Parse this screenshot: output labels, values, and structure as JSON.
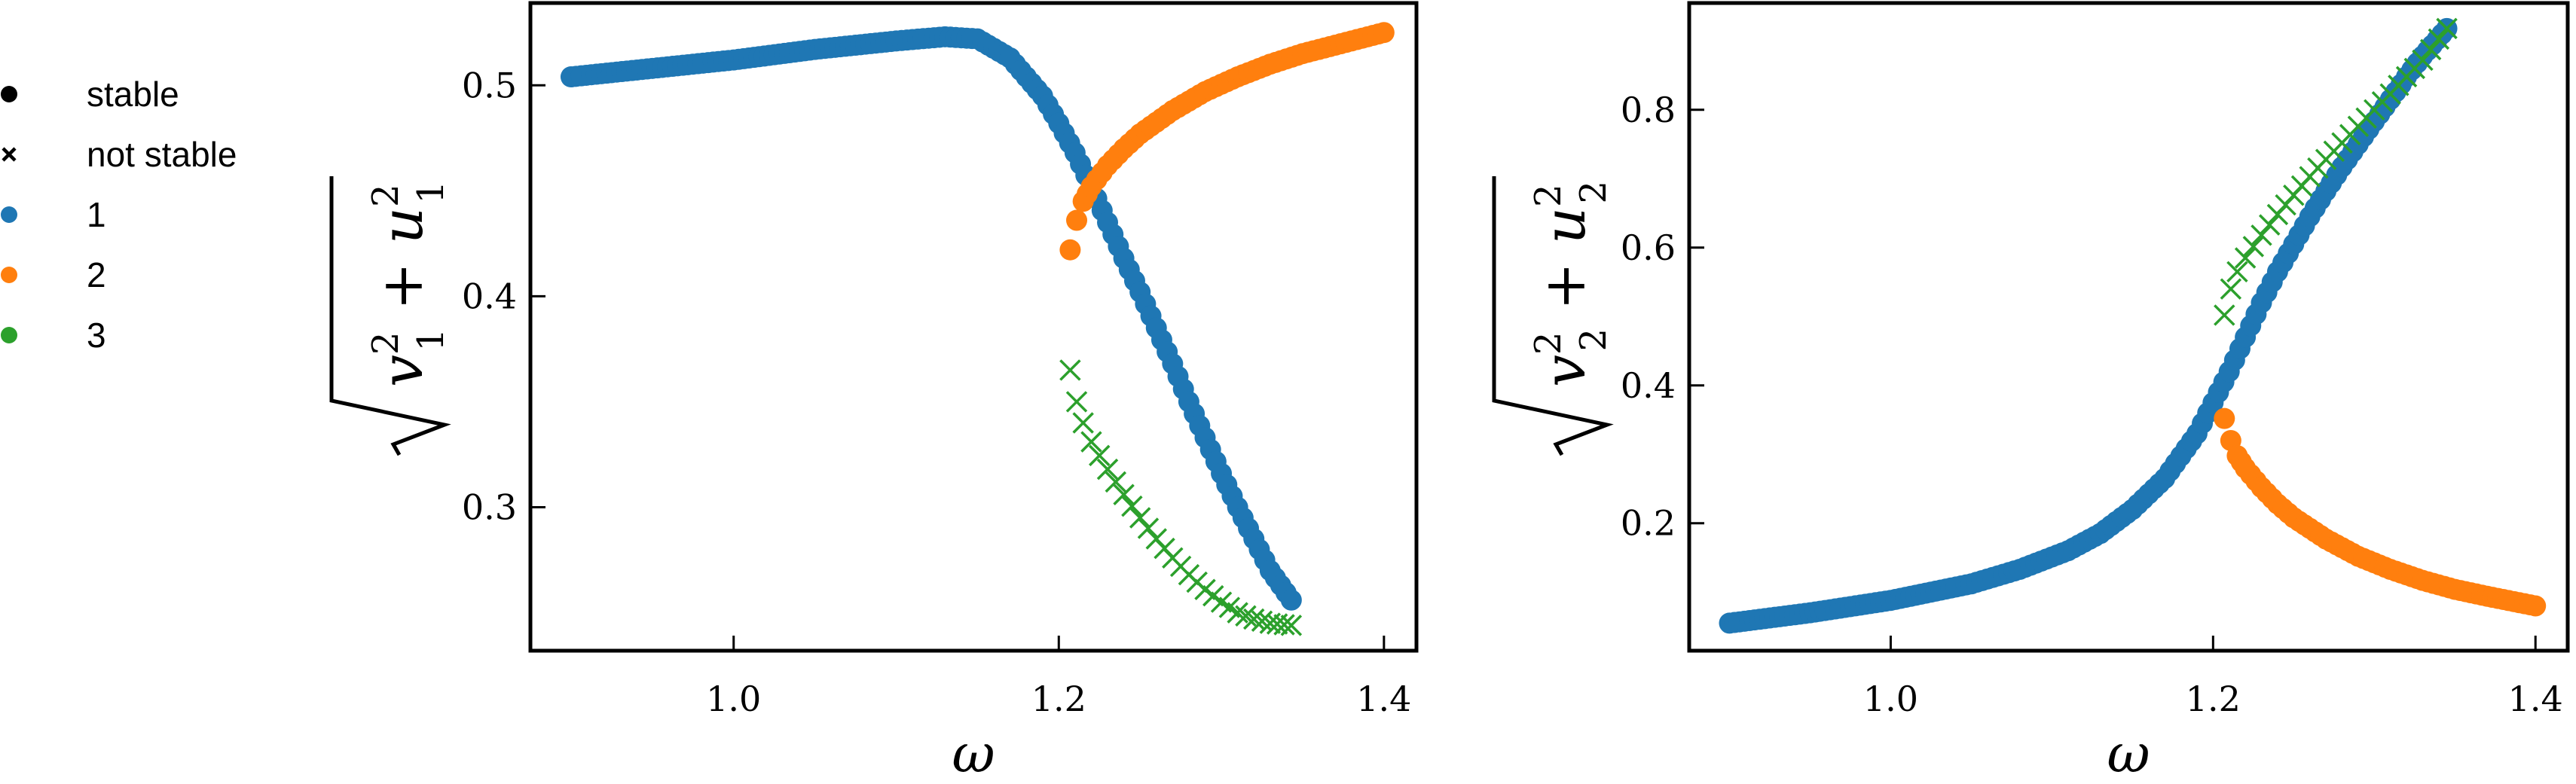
{
  "legend": {
    "items": [
      {
        "label": "stable",
        "marker": "circle",
        "color": "#000000"
      },
      {
        "label": "not stable",
        "marker": "x",
        "color": "#000000"
      },
      {
        "label": "1",
        "marker": "circle",
        "color": "#1f77b4"
      },
      {
        "label": "2",
        "marker": "circle",
        "color": "#ff7f0e"
      },
      {
        "label": "3",
        "marker": "circle",
        "color": "#2ca02c"
      }
    ]
  },
  "colors": {
    "branch1": "#1f77b4",
    "branch2": "#ff7f0e",
    "branch3": "#2ca02c",
    "axis": "#000000"
  },
  "chart_data": [
    {
      "type": "scatter",
      "title": "",
      "xlabel": "ω",
      "ylabel": "sqrt(v1^2 + u1^2)",
      "xlim": [
        0.875,
        1.42
      ],
      "ylim": [
        0.232,
        0.539
      ],
      "xticks": [
        1.0,
        1.2,
        1.4
      ],
      "xtick_labels": [
        "1.0",
        "1.2",
        "1.4"
      ],
      "yticks": [
        0.3,
        0.4,
        0.5
      ],
      "ytick_labels": [
        "0.3",
        "0.4",
        "0.5"
      ],
      "grid": false,
      "series": [
        {
          "name": "1",
          "stability": "stable",
          "marker": "circle",
          "color": "#1f77b4",
          "x": [
            0.9,
            0.95,
            1.0,
            1.05,
            1.1,
            1.13,
            1.15,
            1.17,
            1.19,
            1.2,
            1.21,
            1.22,
            1.23,
            1.24,
            1.25,
            1.26,
            1.27,
            1.28,
            1.29,
            1.3,
            1.31,
            1.32,
            1.33,
            1.343
          ],
          "y": [
            0.504,
            0.508,
            0.512,
            0.517,
            0.521,
            0.523,
            0.522,
            0.513,
            0.495,
            0.482,
            0.468,
            0.452,
            0.435,
            0.418,
            0.402,
            0.385,
            0.368,
            0.35,
            0.333,
            0.316,
            0.3,
            0.285,
            0.27,
            0.256
          ]
        },
        {
          "name": "2",
          "stability": "stable",
          "marker": "circle",
          "color": "#ff7f0e",
          "x": [
            1.207,
            1.211,
            1.215,
            1.22,
            1.23,
            1.24,
            1.25,
            1.27,
            1.29,
            1.31,
            1.33,
            1.35,
            1.37,
            1.4
          ],
          "y": [
            0.422,
            0.436,
            0.445,
            0.452,
            0.462,
            0.47,
            0.477,
            0.488,
            0.497,
            0.504,
            0.51,
            0.515,
            0.519,
            0.525
          ]
        },
        {
          "name": "3",
          "stability": "not stable",
          "marker": "x",
          "color": "#2ca02c",
          "x": [
            1.207,
            1.211,
            1.215,
            1.22,
            1.23,
            1.24,
            1.25,
            1.26,
            1.27,
            1.28,
            1.29,
            1.3,
            1.31,
            1.32,
            1.33,
            1.343
          ],
          "y": [
            0.365,
            0.35,
            0.34,
            0.331,
            0.318,
            0.306,
            0.295,
            0.285,
            0.276,
            0.268,
            0.261,
            0.255,
            0.25,
            0.247,
            0.245,
            0.244
          ]
        }
      ]
    },
    {
      "type": "scatter",
      "title": "",
      "xlabel": "ω",
      "ylabel": "sqrt(v2^2 + u2^2)",
      "xlim": [
        0.875,
        1.42
      ],
      "ylim": [
        0.015,
        0.955
      ],
      "xticks": [
        1.0,
        1.2,
        1.4
      ],
      "xtick_labels": [
        "1.0",
        "1.2",
        "1.4"
      ],
      "yticks": [
        0.2,
        0.4,
        0.6,
        0.8
      ],
      "ytick_labels": [
        "0.2",
        "0.4",
        "0.6",
        "0.8"
      ],
      "grid": false,
      "series": [
        {
          "name": "1",
          "stability": "stable",
          "marker": "circle",
          "color": "#1f77b4",
          "x": [
            0.9,
            0.95,
            1.0,
            1.05,
            1.08,
            1.11,
            1.13,
            1.15,
            1.17,
            1.19,
            1.2,
            1.21,
            1.22,
            1.23,
            1.24,
            1.25,
            1.26,
            1.27,
            1.28,
            1.29,
            1.3,
            1.31,
            1.32,
            1.33,
            1.345
          ],
          "y": [
            0.055,
            0.07,
            0.088,
            0.112,
            0.133,
            0.16,
            0.185,
            0.22,
            0.265,
            0.33,
            0.375,
            0.42,
            0.47,
            0.52,
            0.565,
            0.605,
            0.645,
            0.682,
            0.717,
            0.75,
            0.783,
            0.815,
            0.848,
            0.878,
            0.918
          ]
        },
        {
          "name": "2",
          "stability": "stable",
          "marker": "circle",
          "color": "#ff7f0e",
          "x": [
            1.207,
            1.211,
            1.215,
            1.22,
            1.23,
            1.24,
            1.25,
            1.27,
            1.29,
            1.31,
            1.33,
            1.35,
            1.37,
            1.4
          ],
          "y": [
            0.352,
            0.32,
            0.298,
            0.28,
            0.252,
            0.228,
            0.208,
            0.177,
            0.152,
            0.133,
            0.117,
            0.104,
            0.094,
            0.08
          ]
        },
        {
          "name": "3",
          "stability": "not stable",
          "marker": "x",
          "color": "#2ca02c",
          "x": [
            1.207,
            1.211,
            1.215,
            1.22,
            1.23,
            1.24,
            1.25,
            1.26,
            1.27,
            1.28,
            1.29,
            1.3,
            1.31,
            1.32,
            1.33,
            1.345
          ],
          "y": [
            0.502,
            0.54,
            0.565,
            0.585,
            0.618,
            0.648,
            0.676,
            0.703,
            0.728,
            0.752,
            0.776,
            0.8,
            0.823,
            0.848,
            0.872,
            0.918
          ]
        }
      ]
    }
  ]
}
